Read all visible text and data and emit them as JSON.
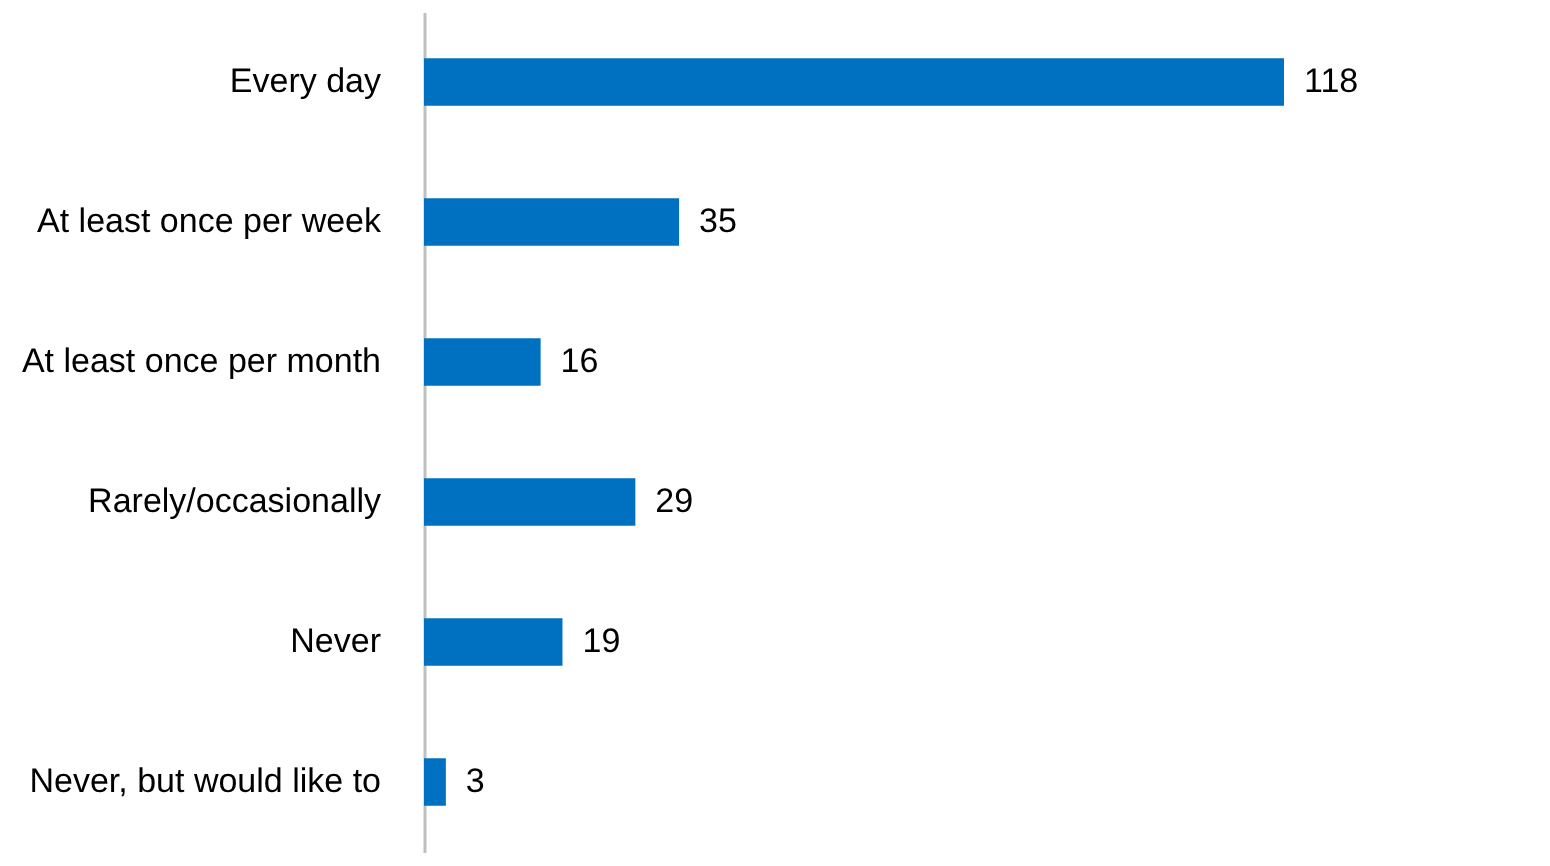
{
  "chart_data": {
    "type": "bar",
    "orientation": "horizontal",
    "categories": [
      "Every day",
      "At least once per week",
      "At least once per month",
      "Rarely/occasionally",
      "Never",
      "Never, but would like to"
    ],
    "values": [
      118,
      35,
      16,
      29,
      19,
      3
    ],
    "color": "#0070c0",
    "data_labels": true
  }
}
